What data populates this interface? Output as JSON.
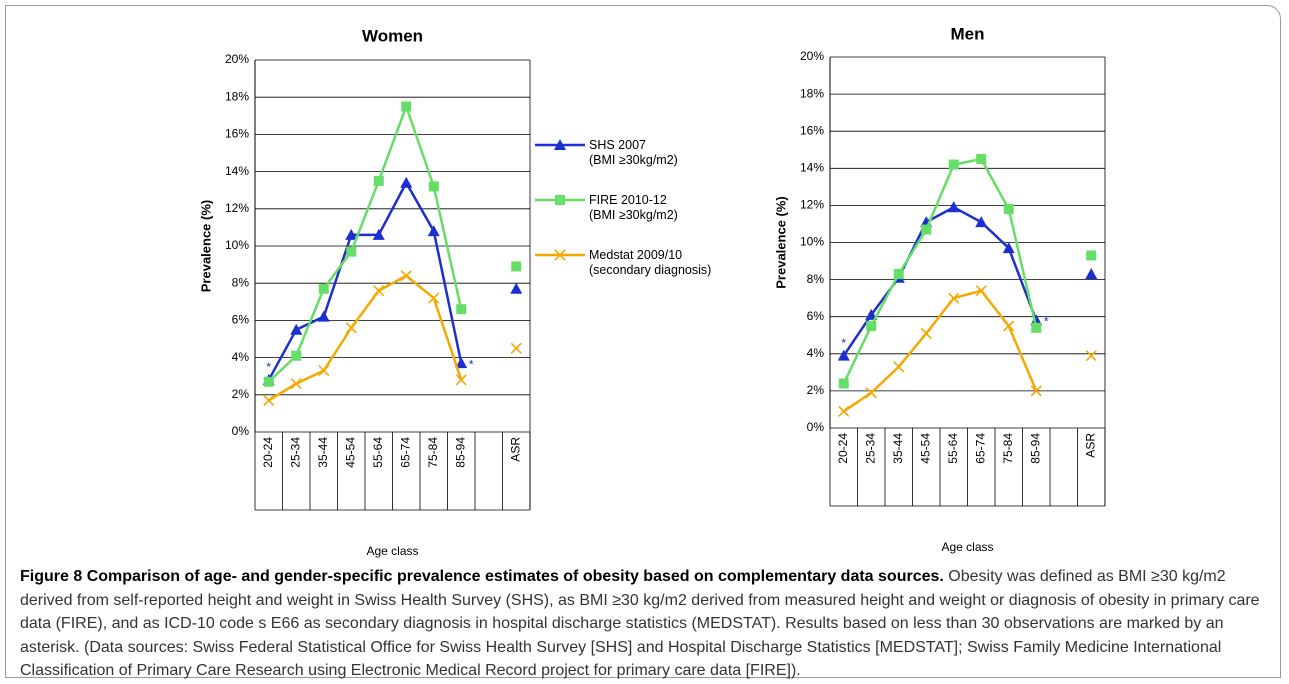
{
  "chart_data": [
    {
      "type": "line",
      "title": "Women",
      "xlabel": "Age class",
      "ylabel": "Prevalence (%)",
      "categories": [
        "20-24",
        "25-34",
        "35-44",
        "45-54",
        "55-64",
        "65-74",
        "75-84",
        "85-94",
        null,
        "ASR"
      ],
      "series": [
        {
          "name": "SHS 2007\n(BMI ≥30kg/m2)",
          "color": "#1c2fd1",
          "marker": "triangle",
          "values": [
            2.8,
            5.5,
            6.2,
            10.6,
            10.6,
            13.4,
            10.8,
            3.7,
            null,
            7.7
          ]
        },
        {
          "name": "FIRE 2010-12\n(BMI ≥30kg/m2)",
          "color": "#66dd66",
          "marker": "square",
          "values": [
            2.7,
            4.1,
            7.7,
            9.7,
            13.5,
            17.5,
            13.2,
            6.6,
            null,
            8.9
          ]
        },
        {
          "name": "Medstat 2009/10\n(secondary diagnosis)",
          "color": "#f5a800",
          "marker": "x",
          "values": [
            1.7,
            2.6,
            3.3,
            5.6,
            7.6,
            8.4,
            7.2,
            2.8,
            null,
            4.5
          ]
        }
      ],
      "annotations": [
        "*",
        "*"
      ],
      "ylim": [
        0,
        20
      ],
      "yticks": [
        {
          "value": 0,
          "label": "0%"
        },
        {
          "value": 2,
          "label": "2%"
        },
        {
          "value": 4,
          "label": "4%"
        },
        {
          "value": 6,
          "label": "6%"
        },
        {
          "value": 8,
          "label": "8%"
        },
        {
          "value": 10,
          "label": "10%"
        },
        {
          "value": 12,
          "label": "12%"
        },
        {
          "value": 14,
          "label": "14%"
        },
        {
          "value": 16,
          "label": "16%"
        },
        {
          "value": 18,
          "label": "18%"
        },
        {
          "value": 20,
          "label": "20%"
        }
      ],
      "grid": true
    },
    {
      "type": "line",
      "title": "Men",
      "xlabel": "Age class",
      "ylabel": "Prevalence (%)",
      "categories": [
        "20-24",
        "25-34",
        "35-44",
        "45-54",
        "55-64",
        "65-74",
        "75-84",
        "85-94",
        null,
        "ASR"
      ],
      "series": [
        {
          "color": "#1c2fd1",
          "marker": "triangle",
          "values": [
            3.9,
            6.1,
            8.1,
            11.1,
            11.9,
            11.1,
            9.7,
            5.8,
            null,
            8.3
          ]
        },
        {
          "color": "#66dd66",
          "marker": "square",
          "values": [
            2.4,
            5.5,
            8.3,
            10.7,
            14.2,
            14.5,
            11.8,
            5.4,
            null,
            9.3
          ]
        },
        {
          "color": "#f5a800",
          "marker": "x",
          "values": [
            0.9,
            1.9,
            3.3,
            5.1,
            7.0,
            7.4,
            5.5,
            2.0,
            null,
            3.9
          ]
        }
      ],
      "annotations": [
        "*",
        "*"
      ],
      "ylim": [
        0,
        20
      ],
      "yticks": [
        {
          "value": 0,
          "label": "0%"
        },
        {
          "value": 2,
          "label": "2%"
        },
        {
          "value": 4,
          "label": "4%"
        },
        {
          "value": 6,
          "label": "6%"
        },
        {
          "value": 8,
          "label": "8%"
        },
        {
          "value": 10,
          "label": "10%"
        },
        {
          "value": 12,
          "label": "12%"
        },
        {
          "value": 14,
          "label": "14%"
        },
        {
          "value": 16,
          "label": "16%"
        },
        {
          "value": 18,
          "label": "18%"
        },
        {
          "value": 20,
          "label": "20%"
        }
      ],
      "grid": true
    }
  ],
  "caption": {
    "label": "Figure 8",
    "title": "Comparison of age- and gender-specific prevalence estimates of obesity based on complementary data sources.",
    "text": "Obesity was defined as BMI ≥30 kg/m2 derived from self-reported height and weight in Swiss Health Survey (SHS), as BMI ≥30 kg/m2 derived from measured height and weight or diagnosis of obesity in primary care data (FIRE), and as ICD-10 code s E66 as secondary diagnosis in hospital discharge statistics (MEDSTAT). Results based on less than 30 observations are marked by an asterisk. (Data sources: Swiss Federal Statistical Office for Swiss Health Survey [SHS] and Hospital Discharge Statistics [MEDSTAT]; Swiss Family Medicine International Classification of Primary Care Research using Electronic Medical Record project for primary care data [FIRE])."
  }
}
